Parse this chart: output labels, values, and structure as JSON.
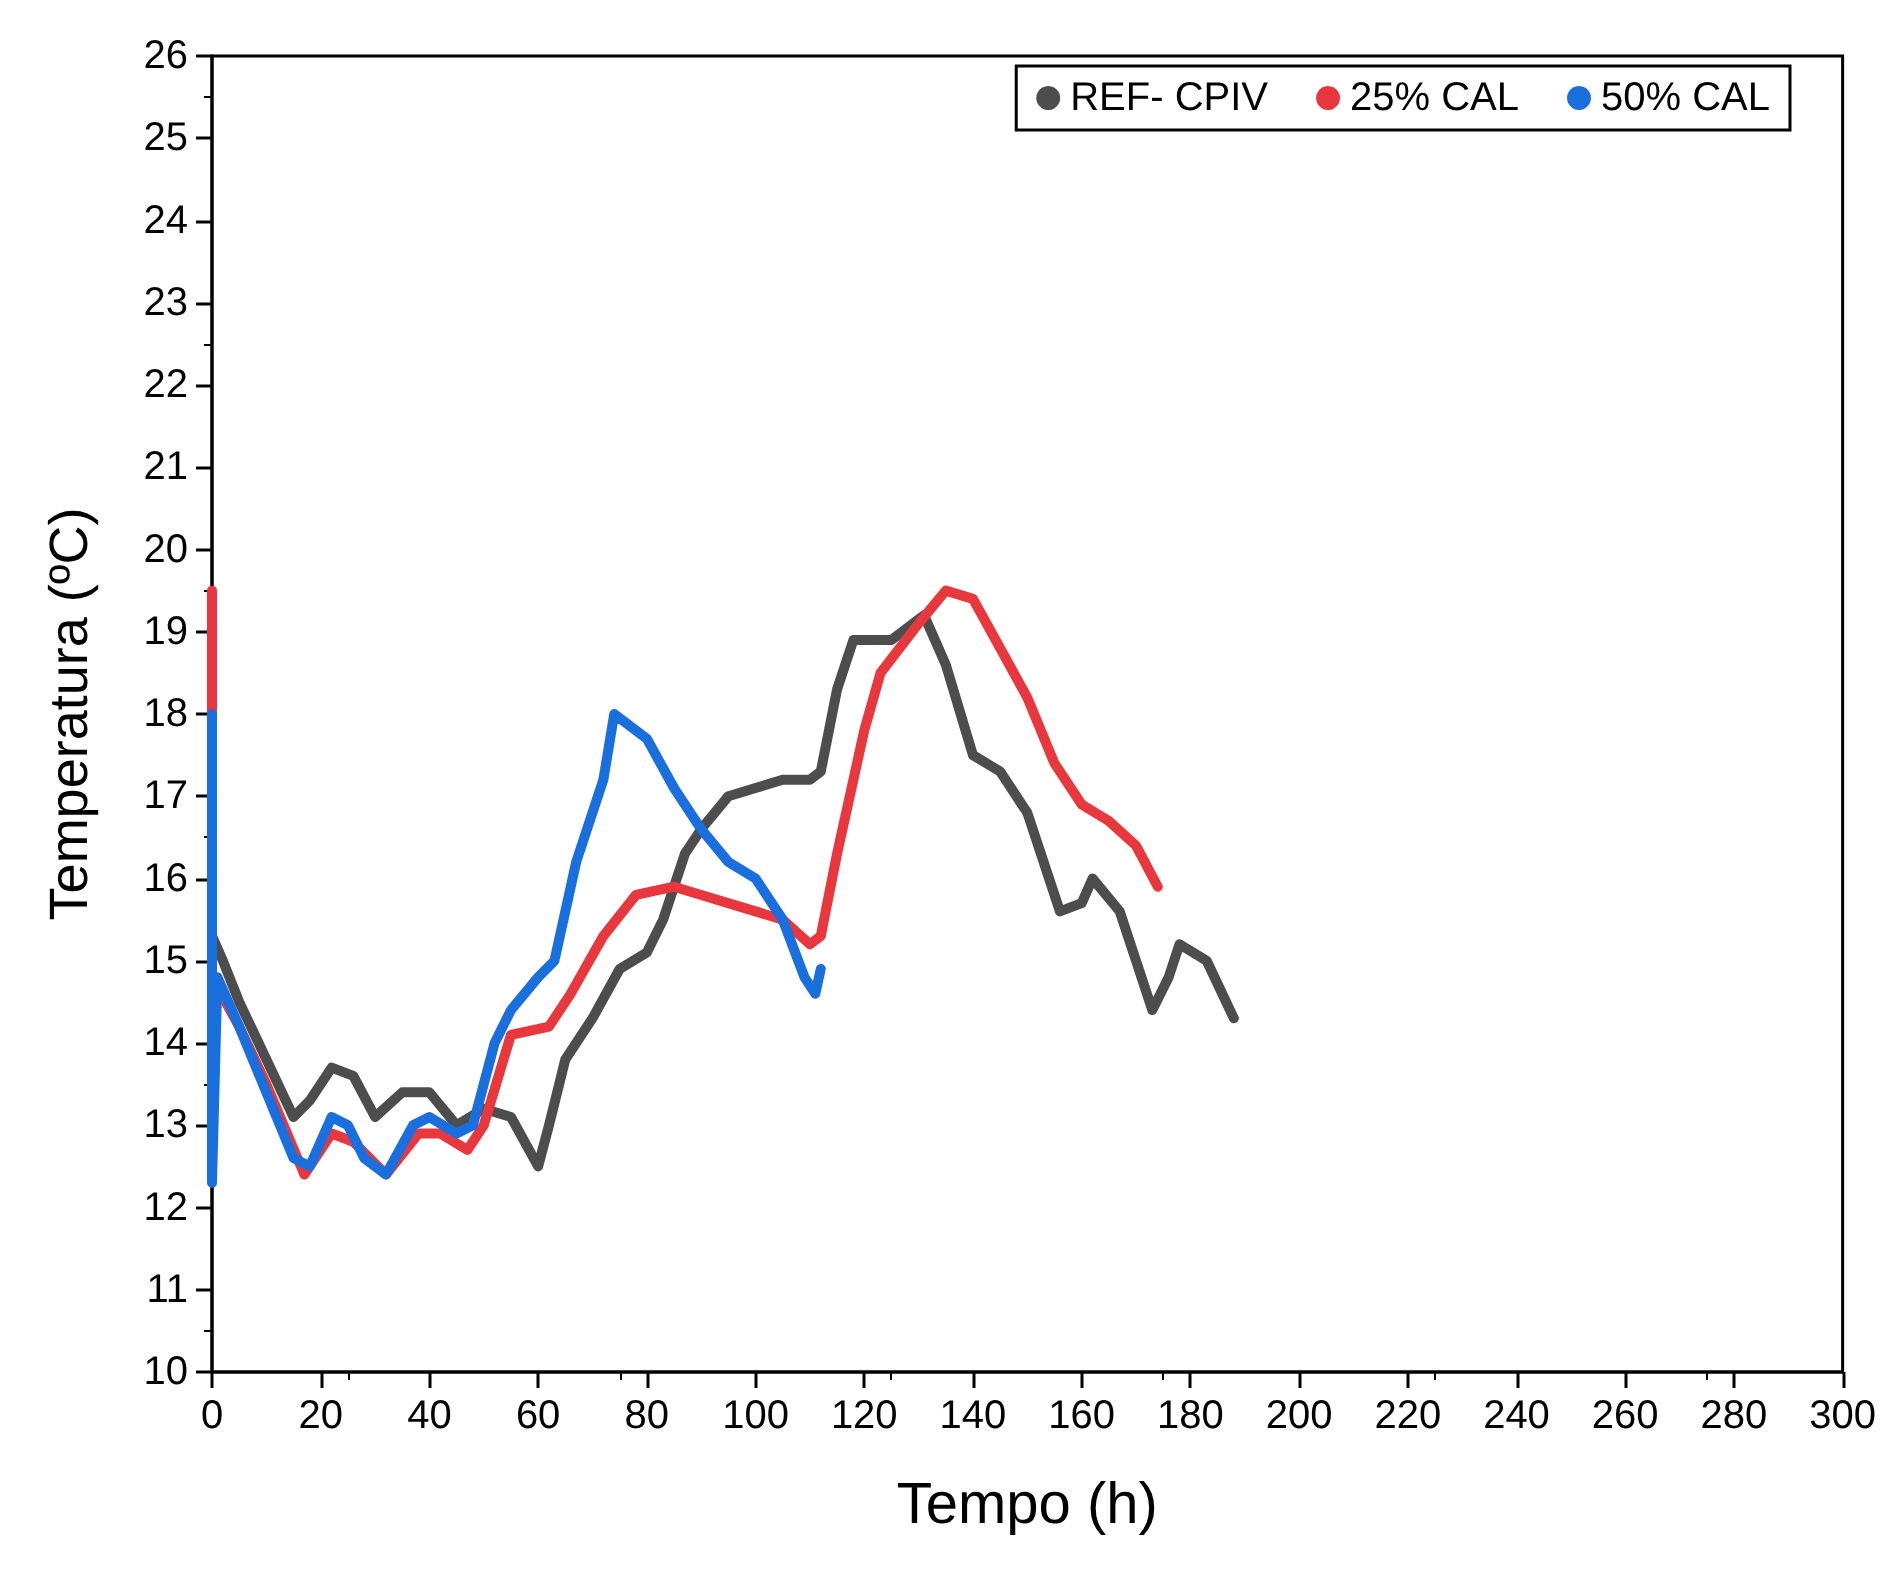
{
  "chart_data": {
    "type": "line",
    "xlabel": "Tempo (h)",
    "ylabel": "Temperatura (ºC)",
    "xlim": [
      0,
      300
    ],
    "ylim": [
      10,
      26
    ],
    "xticks": [
      0,
      20,
      40,
      60,
      80,
      100,
      120,
      140,
      160,
      180,
      200,
      220,
      240,
      260,
      280,
      300
    ],
    "yticks": [
      10,
      11,
      12,
      13,
      14,
      15,
      16,
      17,
      18,
      19,
      20,
      21,
      22,
      23,
      24,
      25,
      26
    ],
    "grid": false,
    "legend": "top right",
    "marker": "none",
    "line_style": "solid",
    "series": [
      {
        "name": "REF- CPIV",
        "color": "#4d4d4d",
        "x": [
          0,
          2,
          5,
          10,
          15,
          18,
          22,
          26,
          30,
          35,
          40,
          45,
          50,
          55,
          60,
          62,
          65,
          70,
          75,
          80,
          83,
          87,
          90,
          95,
          100,
          105,
          110,
          112,
          115,
          118,
          120,
          125,
          131,
          135,
          140,
          145,
          150,
          156,
          160,
          162,
          167,
          170,
          173,
          176,
          178,
          183,
          188
        ],
        "values": [
          15.3,
          15.0,
          14.5,
          13.8,
          13.1,
          13.3,
          13.7,
          13.6,
          13.1,
          13.4,
          13.4,
          13.0,
          13.2,
          13.1,
          12.5,
          13.0,
          13.8,
          14.3,
          14.9,
          15.1,
          15.5,
          16.3,
          16.6,
          17.0,
          17.1,
          17.2,
          17.2,
          17.3,
          18.3,
          18.9,
          18.9,
          18.9,
          19.2,
          18.6,
          17.5,
          17.3,
          16.8,
          15.6,
          15.7,
          16.0,
          15.6,
          15.0,
          14.4,
          14.8,
          15.2,
          15.0,
          14.3
        ]
      },
      {
        "name": "25% CAL",
        "color": "#e8383d",
        "x": [
          0,
          0,
          5,
          10,
          17,
          22,
          26,
          32,
          38,
          42,
          47,
          50,
          55,
          62,
          66,
          72,
          78,
          85,
          90,
          100,
          105,
          110,
          112,
          115,
          120,
          123,
          130,
          135,
          140,
          145,
          150,
          155,
          160,
          165,
          170,
          174
        ],
        "values": [
          19.5,
          14.8,
          14.2,
          13.5,
          12.4,
          12.9,
          12.8,
          12.4,
          12.9,
          12.9,
          12.7,
          13.0,
          14.1,
          14.2,
          14.6,
          15.3,
          15.8,
          15.9,
          15.8,
          15.6,
          15.5,
          15.2,
          15.3,
          16.3,
          17.8,
          18.5,
          19.1,
          19.5,
          19.4,
          18.8,
          18.2,
          17.4,
          16.9,
          16.7,
          16.4,
          15.9
        ]
      },
      {
        "name": "50% CAL",
        "color": "#1a6fdf",
        "x": [
          0,
          0,
          1,
          5,
          10,
          15,
          18,
          22,
          25,
          28,
          32,
          37,
          40,
          45,
          48,
          52,
          55,
          60,
          63,
          67,
          72,
          74,
          80,
          85,
          90,
          95,
          100,
          105,
          109,
          111,
          112
        ],
        "values": [
          18.0,
          12.3,
          14.8,
          14.2,
          13.4,
          12.6,
          12.5,
          13.1,
          13.0,
          12.6,
          12.4,
          13.0,
          13.1,
          12.9,
          13.0,
          14.0,
          14.4,
          14.8,
          15.0,
          16.2,
          17.2,
          18.0,
          17.7,
          17.1,
          16.6,
          16.2,
          16.0,
          15.5,
          14.8,
          14.6,
          14.9
        ]
      }
    ]
  }
}
